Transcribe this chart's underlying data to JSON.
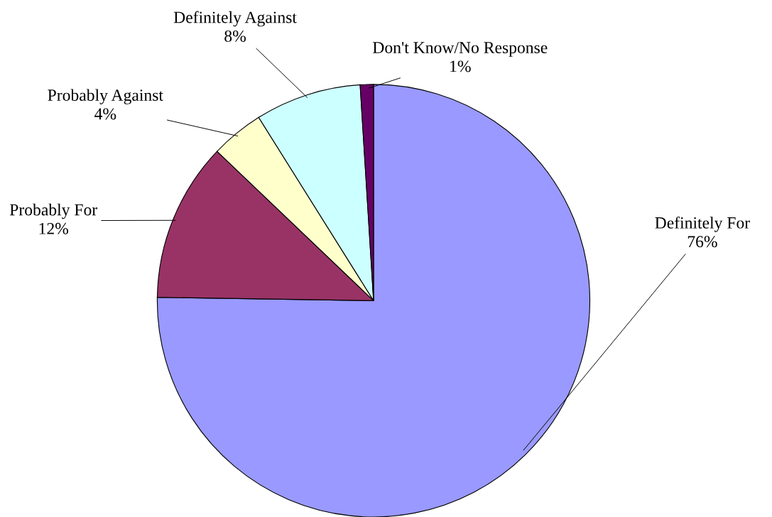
{
  "chart_data": {
    "type": "pie",
    "categories": [
      "Definitely For",
      "Probably For",
      "Probably Against",
      "Definitely Against",
      "Don't Know/No Response"
    ],
    "values": [
      76,
      12,
      4,
      8,
      1
    ],
    "value_labels": [
      "76%",
      "12%",
      "4%",
      "8%",
      "1%"
    ],
    "colors": [
      "#9999ff",
      "#993366",
      "#ffffcc",
      "#ccffff",
      "#660066"
    ]
  }
}
